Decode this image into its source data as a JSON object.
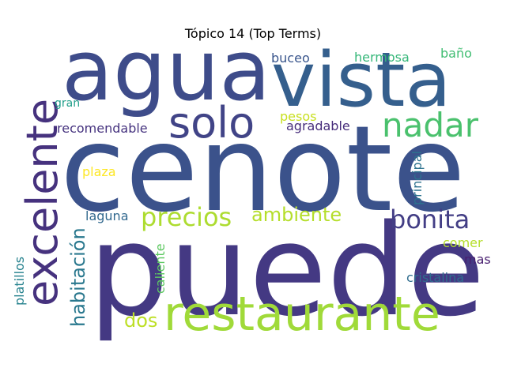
{
  "chart_data": {
    "type": "wordcloud",
    "title": "Tópico 14 (Top Terms)",
    "words": [
      {
        "text": "cenote",
        "color": "#3b528b"
      },
      {
        "text": "puede",
        "color": "#443983"
      },
      {
        "text": "agua",
        "color": "#3e4c8a"
      },
      {
        "text": "vista",
        "color": "#355f8d"
      },
      {
        "text": "restaurante",
        "color": "#a0da39"
      },
      {
        "text": "excelente",
        "color": "#46327e"
      },
      {
        "text": "solo",
        "color": "#414487"
      },
      {
        "text": "nadar",
        "color": "#4ac16d"
      },
      {
        "text": "precios",
        "color": "#addc30"
      },
      {
        "text": "bonita",
        "color": "#433e85"
      },
      {
        "text": "ambiente",
        "color": "#b5de2b"
      },
      {
        "text": "habitación",
        "color": "#2a788e"
      },
      {
        "text": "dos",
        "color": "#bddf26"
      },
      {
        "text": "buceo",
        "color": "#39558c"
      },
      {
        "text": "hermosa",
        "color": "#35b779"
      },
      {
        "text": "baño",
        "color": "#40bd72"
      },
      {
        "text": "gran",
        "color": "#1f9e89"
      },
      {
        "text": "pesos",
        "color": "#c8e020"
      },
      {
        "text": "agradable",
        "color": "#472d7b"
      },
      {
        "text": "recomendable",
        "color": "#46337f"
      },
      {
        "text": "principal",
        "color": "#2c728e"
      },
      {
        "text": "plaza",
        "color": "#fde725"
      },
      {
        "text": "laguna",
        "color": "#31688e"
      },
      {
        "text": "comer",
        "color": "#b5de2b"
      },
      {
        "text": "mas",
        "color": "#481f70"
      },
      {
        "text": "platillos",
        "color": "#26828e"
      },
      {
        "text": "caliente",
        "color": "#5ec962"
      },
      {
        "text": "cristalina",
        "color": "#2f6c8e"
      }
    ]
  }
}
